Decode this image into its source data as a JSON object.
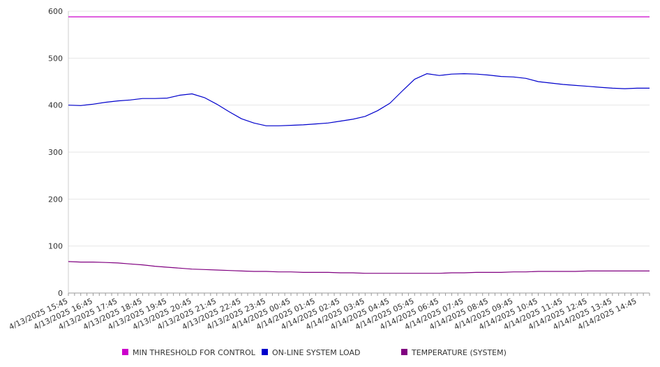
{
  "chart_data": {
    "type": "line",
    "ylim": [
      0,
      600
    ],
    "yticks": [
      "0",
      "100",
      "200",
      "300",
      "400",
      "500",
      "600"
    ],
    "xticks": [
      "4/13/2025 15:45",
      "4/13/2025 16:45",
      "4/13/2025 17:45",
      "4/13/2025 18:45",
      "4/13/2025 19:45",
      "4/13/2025 20:45",
      "4/13/2025 21:45",
      "4/13/2025 22:45",
      "4/13/2025 23:45",
      "4/14/2025 00:45",
      "4/14/2025 01:45",
      "4/14/2025 02:45",
      "4/14/2025 03:45",
      "4/14/2025 04:45",
      "4/14/2025 05:45",
      "4/14/2025 06:45",
      "4/14/2025 07:45",
      "4/14/2025 08:45",
      "4/14/2025 09:45",
      "4/14/2025 10:45",
      "4/14/2025 11:45",
      "4/14/2025 12:45",
      "4/14/2025 13:45",
      "4/14/2025 14:45"
    ],
    "x": [
      "4/13/2025 15:45",
      "4/13/2025 16:15",
      "4/13/2025 16:45",
      "4/13/2025 17:15",
      "4/13/2025 17:45",
      "4/13/2025 18:15",
      "4/13/2025 18:45",
      "4/13/2025 19:15",
      "4/13/2025 19:45",
      "4/13/2025 20:15",
      "4/13/2025 20:45",
      "4/13/2025 21:15",
      "4/13/2025 21:45",
      "4/13/2025 22:15",
      "4/13/2025 22:45",
      "4/13/2025 23:15",
      "4/13/2025 23:45",
      "4/14/2025 00:15",
      "4/14/2025 00:45",
      "4/14/2025 01:15",
      "4/14/2025 01:45",
      "4/14/2025 02:15",
      "4/14/2025 02:45",
      "4/14/2025 03:15",
      "4/14/2025 03:45",
      "4/14/2025 04:15",
      "4/14/2025 04:45",
      "4/14/2025 05:15",
      "4/14/2025 05:45",
      "4/14/2025 06:15",
      "4/14/2025 06:45",
      "4/14/2025 07:15",
      "4/14/2025 07:45",
      "4/14/2025 08:15",
      "4/14/2025 08:45",
      "4/14/2025 09:15",
      "4/14/2025 09:45",
      "4/14/2025 10:15",
      "4/14/2025 10:45",
      "4/14/2025 11:15",
      "4/14/2025 11:45",
      "4/14/2025 12:15",
      "4/14/2025 12:45",
      "4/14/2025 13:15",
      "4/14/2025 13:45",
      "4/14/2025 14:15",
      "4/14/2025 14:45",
      "4/14/2025 15:15"
    ],
    "series": [
      {
        "name": "MIN THRESHOLD FOR CONTROL",
        "color": "#cc00cc",
        "values": [
          588,
          588,
          588,
          588,
          588,
          588,
          588,
          588,
          588,
          588,
          588,
          588,
          588,
          588,
          588,
          588,
          588,
          588,
          588,
          588,
          588,
          588,
          588,
          588,
          588,
          588,
          588,
          588,
          588,
          588,
          588,
          588,
          588,
          588,
          588,
          588,
          588,
          588,
          588,
          588,
          588,
          588,
          588,
          588,
          588,
          588,
          588,
          588
        ]
      },
      {
        "name": "ON-LINE SYSTEM LOAD",
        "color": "#0000cc",
        "values": [
          400,
          399,
          402,
          406,
          409,
          411,
          414,
          414,
          415,
          421,
          424,
          416,
          402,
          386,
          371,
          362,
          356,
          356,
          357,
          358,
          360,
          362,
          366,
          370,
          376,
          388,
          404,
          430,
          455,
          467,
          463,
          466,
          467,
          466,
          464,
          461,
          460,
          457,
          450,
          447,
          444,
          442,
          440,
          438,
          436,
          435,
          436,
          436
        ]
      },
      {
        "name": "TEMPERATURE (SYSTEM)",
        "color": "#800080",
        "values": [
          67,
          66,
          66,
          65,
          64,
          62,
          60,
          57,
          55,
          53,
          51,
          50,
          49,
          48,
          47,
          46,
          46,
          45,
          45,
          44,
          44,
          44,
          43,
          43,
          42,
          42,
          42,
          42,
          42,
          42,
          42,
          43,
          43,
          44,
          44,
          44,
          45,
          45,
          46,
          46,
          46,
          46,
          47,
          47,
          47,
          47,
          47,
          47
        ]
      }
    ],
    "grid": true,
    "legend_position": "bottom"
  }
}
